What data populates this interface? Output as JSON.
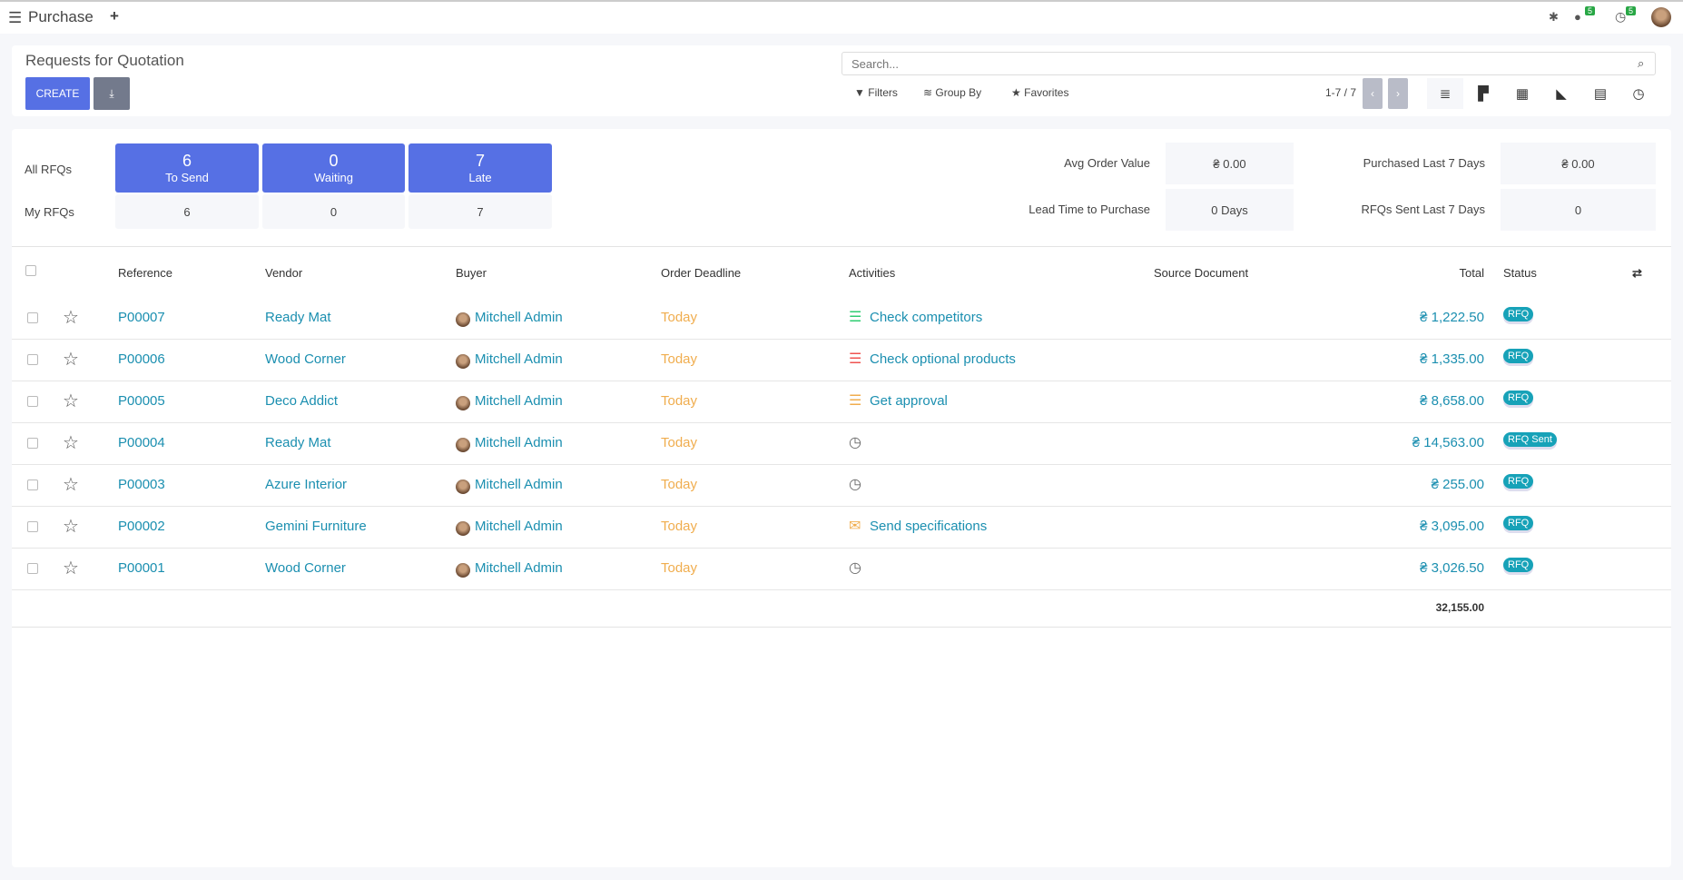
{
  "topbar": {
    "app": "Purchase",
    "plus": "+",
    "chat_count": "5",
    "activity_count": "5"
  },
  "control": {
    "title": "Requests for Quotation",
    "create": "CREATE",
    "search_placeholder": "Search...",
    "filters": "Filters",
    "group_by": "Group By",
    "favorites": "Favorites",
    "pager": "1-7 / 7"
  },
  "dashboard": {
    "all_rfqs": "All RFQs",
    "my_rfqs": "My RFQs",
    "tiles": [
      {
        "count": "6",
        "label": "To Send",
        "mine": "6"
      },
      {
        "count": "0",
        "label": "Waiting",
        "mine": "0"
      },
      {
        "count": "7",
        "label": "Late",
        "mine": "7"
      }
    ],
    "stats": [
      {
        "label": "Avg Order Value",
        "value": "₴ 0.00"
      },
      {
        "label": "Lead Time to Purchase",
        "value": "0 Days"
      },
      {
        "label": "Purchased Last 7 Days",
        "value": "₴ 0.00"
      },
      {
        "label": "RFQs Sent Last 7 Days",
        "value": "0"
      }
    ]
  },
  "table": {
    "headers": {
      "reference": "Reference",
      "vendor": "Vendor",
      "buyer": "Buyer",
      "deadline": "Order Deadline",
      "activities": "Activities",
      "source": "Source Document",
      "total": "Total",
      "status": "Status"
    },
    "rows": [
      {
        "ref": "P00007",
        "vendor": "Ready Mat",
        "buyer": "Mitchell Admin",
        "deadline": "Today",
        "activity": "Check competitors",
        "activity_icon": "tasks-green",
        "total": "₴ 1,222.50",
        "status": "RFQ"
      },
      {
        "ref": "P00006",
        "vendor": "Wood Corner",
        "buyer": "Mitchell Admin",
        "deadline": "Today",
        "activity": "Check optional products",
        "activity_icon": "tasks-red",
        "total": "₴ 1,335.00",
        "status": "RFQ"
      },
      {
        "ref": "P00005",
        "vendor": "Deco Addict",
        "buyer": "Mitchell Admin",
        "deadline": "Today",
        "activity": "Get approval",
        "activity_icon": "tasks-orange",
        "total": "₴ 8,658.00",
        "status": "RFQ"
      },
      {
        "ref": "P00004",
        "vendor": "Ready Mat",
        "buyer": "Mitchell Admin",
        "deadline": "Today",
        "activity": "",
        "activity_icon": "clock",
        "total": "₴ 14,563.00",
        "status": "RFQ Sent"
      },
      {
        "ref": "P00003",
        "vendor": "Azure Interior",
        "buyer": "Mitchell Admin",
        "deadline": "Today",
        "activity": "",
        "activity_icon": "clock",
        "total": "₴ 255.00",
        "status": "RFQ"
      },
      {
        "ref": "P00002",
        "vendor": "Gemini Furniture",
        "buyer": "Mitchell Admin",
        "deadline": "Today",
        "activity": "Send specifications",
        "activity_icon": "envelope-orange",
        "total": "₴ 3,095.00",
        "status": "RFQ"
      },
      {
        "ref": "P00001",
        "vendor": "Wood Corner",
        "buyer": "Mitchell Admin",
        "deadline": "Today",
        "activity": "",
        "activity_icon": "clock",
        "total": "₴ 3,026.50",
        "status": "RFQ"
      }
    ],
    "sum": "32,155.00"
  },
  "colors": {
    "primary": "#5670e4",
    "link": "#1b8fb0",
    "deadline": "#f0ad4e",
    "badge": "#17a2b8"
  }
}
